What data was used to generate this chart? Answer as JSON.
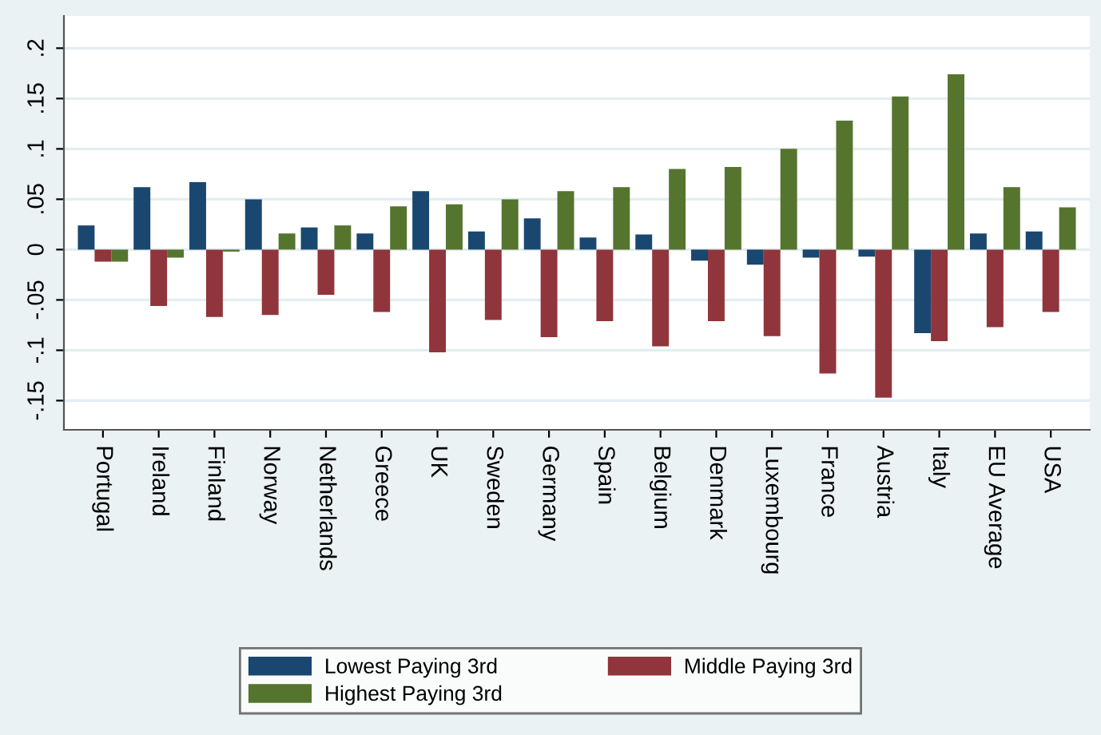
{
  "chart_data": {
    "type": "bar",
    "categories": [
      "Portugal",
      "Ireland",
      "Finland",
      "Norway",
      "Netherlands",
      "Greece",
      "UK",
      "Sweden",
      "Germany",
      "Spain",
      "Belgium",
      "Denmark",
      "Luxembourg",
      "France",
      "Austria",
      "Italy",
      "EU Average",
      "USA"
    ],
    "series": [
      {
        "name": "Lowest Paying 3rd",
        "color": "#1a476f",
        "values": [
          0.024,
          0.062,
          0.067,
          0.05,
          0.022,
          0.016,
          0.058,
          0.018,
          0.031,
          0.012,
          0.015,
          -0.011,
          -0.015,
          -0.008,
          -0.007,
          -0.083,
          0.016,
          0.018
        ]
      },
      {
        "name": "Middle Paying 3rd",
        "color": "#90353b",
        "values": [
          -0.012,
          -0.056,
          -0.067,
          -0.065,
          -0.045,
          -0.062,
          -0.102,
          -0.07,
          -0.087,
          -0.071,
          -0.096,
          -0.071,
          -0.086,
          -0.123,
          -0.147,
          -0.091,
          -0.077,
          -0.062
        ]
      },
      {
        "name": "Highest Paying 3rd",
        "color": "#55752f",
        "values": [
          -0.012,
          -0.008,
          -0.002,
          0.016,
          0.024,
          0.043,
          0.045,
          0.05,
          0.058,
          0.062,
          0.08,
          0.082,
          0.1,
          0.128,
          0.152,
          0.174,
          0.062,
          0.042
        ]
      }
    ],
    "ylim": [
      -0.179,
      0.232
    ],
    "yticks": [
      {
        "value": -0.15,
        "label": "-.15"
      },
      {
        "value": -0.1,
        "label": "-.1"
      },
      {
        "value": -0.05,
        "label": "-.05"
      },
      {
        "value": 0,
        "label": "0"
      },
      {
        "value": 0.05,
        "label": ".05"
      },
      {
        "value": 0.1,
        "label": ".1"
      },
      {
        "value": 0.15,
        "label": ".15"
      },
      {
        "value": 0.2,
        "label": ".2"
      }
    ],
    "grid": "y",
    "legend": "bottom"
  }
}
